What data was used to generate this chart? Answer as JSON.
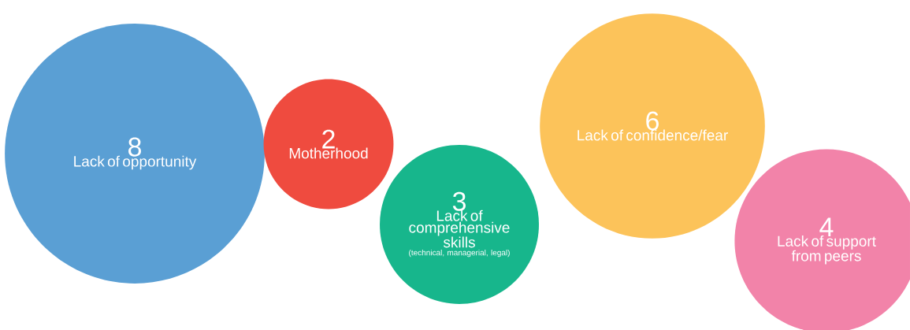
{
  "chart_data": {
    "type": "other",
    "categories": [
      "Lack of opportunity",
      "Motherhood",
      "Lack of comprehensive skills",
      "Lack of confidence/fear",
      "Lack of support from peers"
    ],
    "values": [
      8,
      2,
      3,
      6,
      4
    ],
    "value_labels": [
      "8",
      "2",
      "3",
      "6",
      "4"
    ],
    "colors": [
      "#5a9fd4",
      "#ef4b3f",
      "#17b68c",
      "#fcc35a",
      "#f283a9"
    ],
    "annotations": [
      "(technical, managerial, legal)"
    ]
  }
}
